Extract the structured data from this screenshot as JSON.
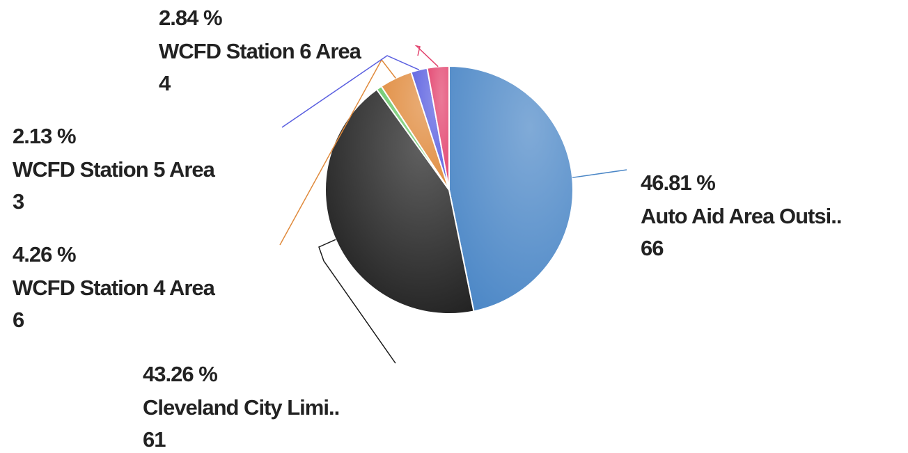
{
  "chart_data": {
    "type": "pie",
    "categories": [
      "Auto Aid Area Outsi..",
      "Cleveland City Limi..",
      null,
      "WCFD Station 4 Area",
      "WCFD Station 5 Area",
      "WCFD Station 6 Area"
    ],
    "values": [
      66,
      61,
      1,
      6,
      3,
      4
    ],
    "percent_labels": [
      "46.81 %",
      "43.26 %",
      null,
      "4.26 %",
      "2.13 %",
      "2.84 %"
    ],
    "colors": [
      "#4a86c6",
      "#1c1c1c",
      "#6cc86c",
      "#e08a3c",
      "#5a5fe0",
      "#e2416c"
    ]
  }
}
